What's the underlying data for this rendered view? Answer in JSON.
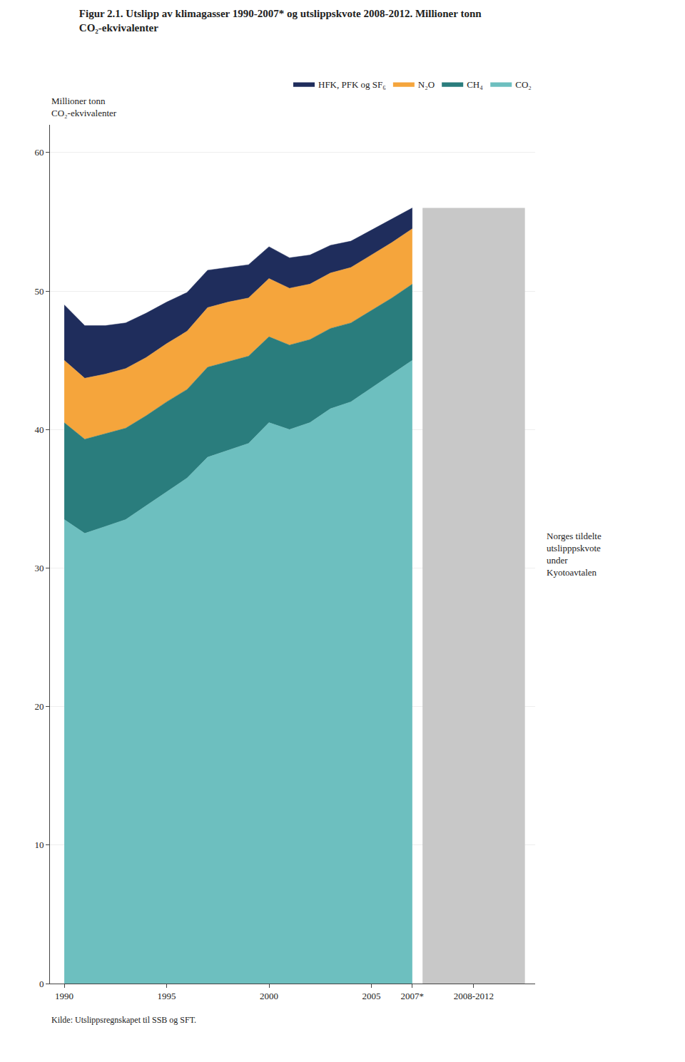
{
  "chart_data": {
    "type": "area",
    "title": "Figur 2.1. Utslipp av klimagasser 1990-2007* og utslippskvote 2008-2012. Millioner tonn\nCO₂-ekvivalenter",
    "ylabel": "Millioner tonn\nCO₂-ekvivalenter",
    "stacked": true,
    "x": [
      1990,
      1991,
      1992,
      1993,
      1994,
      1995,
      1996,
      1997,
      1998,
      1999,
      2000,
      2001,
      2002,
      2003,
      2004,
      2005,
      2006,
      2007
    ],
    "series": [
      {
        "type": "bar",
        "color": "#c8c8c8",
        "x": [
          2010
        ],
        "values": [
          56.0
        ]
      },
      {
        "name": "CO₂",
        "color": "#6dbfbf",
        "values": [
          33.5,
          32.5,
          33.0,
          33.5,
          34.5,
          35.5,
          36.5,
          38.0,
          38.5,
          39.0,
          40.5,
          40.0,
          40.5,
          41.5,
          42.0,
          43.0,
          44.0,
          45.0
        ]
      },
      {
        "name": "CH₄",
        "color": "#2a7d7d",
        "values": [
          7.0,
          6.8,
          6.7,
          6.6,
          6.5,
          6.5,
          6.4,
          6.5,
          6.4,
          6.3,
          6.2,
          6.1,
          6.0,
          5.8,
          5.7,
          5.6,
          5.5,
          5.5
        ]
      },
      {
        "name": "N₂O",
        "color": "#f5a53c",
        "values": [
          4.5,
          4.4,
          4.3,
          4.3,
          4.2,
          4.2,
          4.2,
          4.3,
          4.3,
          4.2,
          4.2,
          4.1,
          4.0,
          4.0,
          4.0,
          4.0,
          4.0,
          4.0
        ]
      },
      {
        "name": "HFK, PFK og SF₆",
        "color": "#1f2d5c",
        "values": [
          4.0,
          3.8,
          3.5,
          3.3,
          3.2,
          3.0,
          2.8,
          2.7,
          2.5,
          2.4,
          2.3,
          2.2,
          2.1,
          2.0,
          1.9,
          1.8,
          1.7,
          1.5
        ]
      }
    ],
    "annotations": [
      "Norges tildelte\nutslipppskvote\nunder\nKyotoavtalen"
    ],
    "source": "Kilde: Utslippsregnskapet til SSB og SFT.",
    "xlim": [
      1989.3,
      2013.0
    ],
    "xticks": [
      1990,
      1995,
      2000,
      2005,
      {
        "value": 2007,
        "label": "2007*"
      },
      {
        "value": 2010,
        "label": "2008-2012"
      }
    ],
    "ylim": [
      0,
      62
    ],
    "yticks": [
      0,
      10,
      20,
      30,
      40,
      50,
      60
    ],
    "grid": true,
    "legend": "top"
  }
}
